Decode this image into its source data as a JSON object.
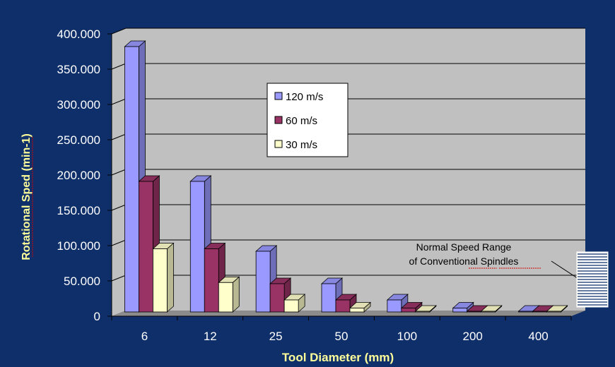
{
  "chart_data": {
    "type": "bar",
    "title": "",
    "xlabel": "Tool Diameter (mm)",
    "ylabel": "Rotational Sped (min-1)",
    "categories": [
      "6",
      "12",
      "25",
      "50",
      "100",
      "200",
      "400"
    ],
    "series": [
      {
        "name": "120 m/s",
        "color": "#9999ff",
        "values": [
          382000,
          191000,
          92000,
          46000,
          23000,
          11500,
          5700
        ]
      },
      {
        "name": "60 m/s",
        "color": "#993366",
        "values": [
          191000,
          95500,
          46000,
          23000,
          11500,
          5700,
          2900
        ]
      },
      {
        "name": "30 m/s",
        "color": "#ffffcc",
        "values": [
          95500,
          47700,
          23000,
          11500,
          5700,
          2900,
          1400
        ]
      }
    ],
    "ylim": [
      0,
      400000
    ],
    "yticks": [
      "0",
      "50.000",
      "100.000",
      "150.000",
      "200.000",
      "250.000",
      "300.000",
      "350.000",
      "400.000"
    ],
    "grid": true,
    "legend_position": "top-center",
    "annotation": {
      "lines": [
        "Normal Speed Range",
        "of Conventional Spindles"
      ]
    },
    "colors": {
      "background": "#0f2f6b",
      "axis_text": "#ffffff",
      "title_text": "#ffff99",
      "plot_wall": "#c0c0c0",
      "plot_floor": "#8c8c8c"
    }
  }
}
